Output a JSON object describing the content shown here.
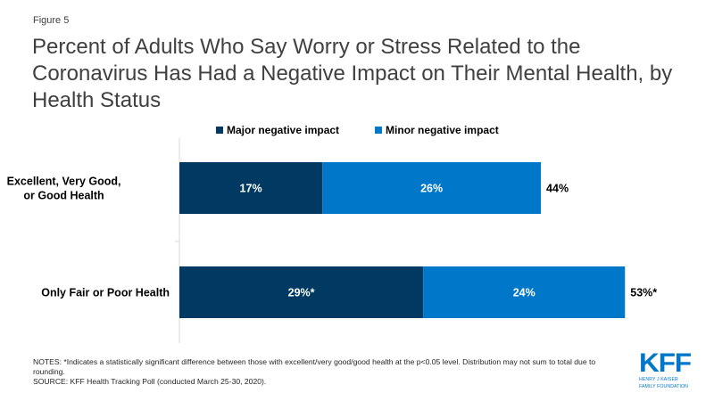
{
  "figure_label": "Figure 5",
  "title": "Percent of Adults Who Say Worry or Stress Related to the Coronavirus Has Had a Negative Impact on Their Mental Health, by Health Status",
  "colors": {
    "major": "#003a63",
    "minor": "#0077c8",
    "axis": "#d9d9d9",
    "logo": "#0077c8"
  },
  "chart_data": {
    "type": "bar",
    "orientation": "horizontal",
    "stacked": true,
    "title": "Percent of Adults Who Say Worry or Stress Related to the Coronavirus Has Had a Negative Impact on Their Mental Health, by Health Status",
    "categories": [
      "Excellent, Very Good, or Good Health",
      "Only Fair or Poor Health"
    ],
    "category_lines": [
      [
        "Excellent, Very Good,",
        "or Good Health"
      ],
      [
        "Only Fair or Poor Health"
      ]
    ],
    "series": [
      {
        "name": "Major negative impact",
        "values": [
          17,
          29
        ],
        "labels": [
          "17%",
          "29%*"
        ]
      },
      {
        "name": "Minor negative impact",
        "values": [
          26,
          24
        ],
        "labels": [
          "26%",
          "24%"
        ]
      }
    ],
    "totals": [
      44,
      53
    ],
    "total_labels": [
      "44%",
      "53%*"
    ],
    "xlim": [
      0,
      55
    ],
    "xlabel": "",
    "ylabel": "",
    "grid": false,
    "legend_position": "top"
  },
  "legend": {
    "major_label": "Major negative impact",
    "minor_label": "Minor negative impact"
  },
  "notes": {
    "line1": "NOTES: *Indicates a statistically significant difference between those with excellent/very good/good health at the p<0.05 level. Distribution may not sum to total due to rounding.",
    "line2": "SOURCE: KFF Health Tracking Poll (conducted March 25-30, 2020)."
  },
  "logo": {
    "name": "KFF",
    "line1": "HENRY J KAISER",
    "line2": "FAMILY FOUNDATION"
  }
}
